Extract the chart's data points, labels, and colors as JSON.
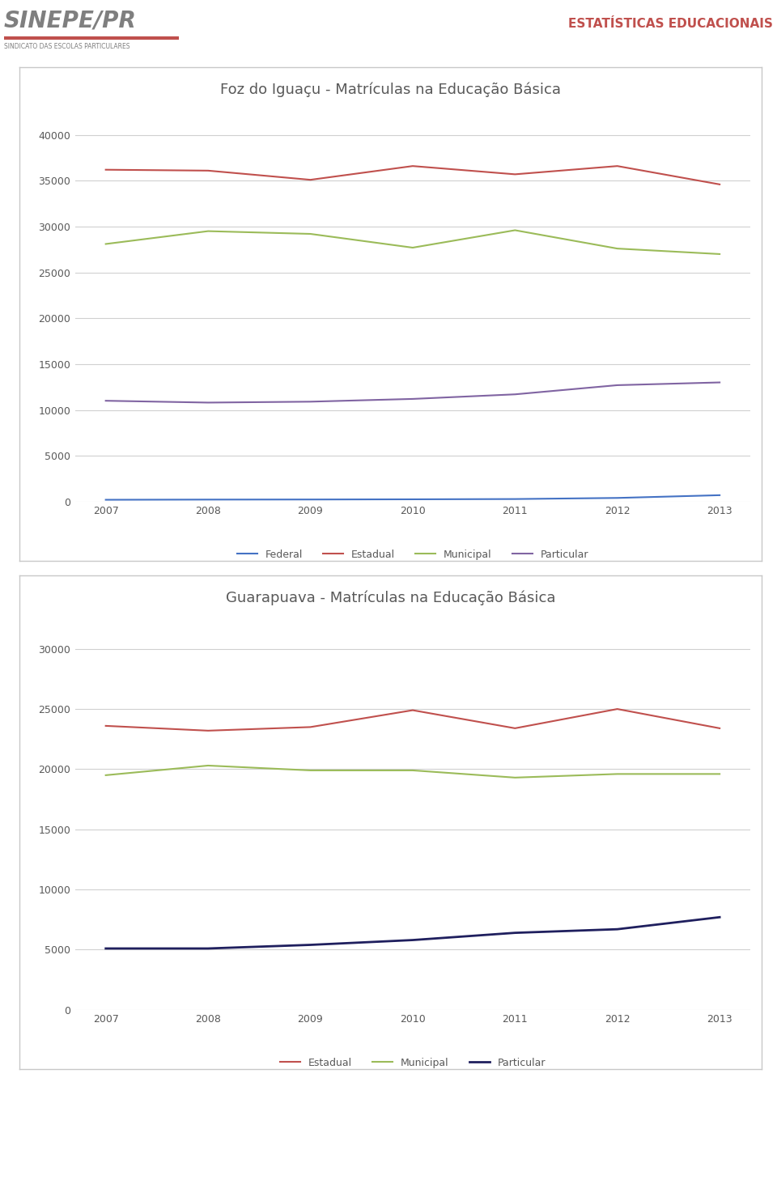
{
  "chart1": {
    "title": "Foz do Iguaçu - Matrículas na Educação Básica",
    "years": [
      2007,
      2008,
      2009,
      2010,
      2011,
      2012,
      2013
    ],
    "federal": [
      200,
      220,
      230,
      250,
      280,
      400,
      700
    ],
    "estadual": [
      36200,
      36100,
      35100,
      36600,
      35700,
      36600,
      34600
    ],
    "municipal": [
      28100,
      29500,
      29200,
      27700,
      29600,
      27600,
      27000
    ],
    "particular": [
      11000,
      10800,
      10900,
      11200,
      11700,
      12700,
      13000
    ],
    "ylim": [
      0,
      42000
    ],
    "yticks": [
      0,
      5000,
      10000,
      15000,
      20000,
      25000,
      30000,
      35000,
      40000
    ],
    "colors": {
      "federal": "#4472C4",
      "estadual": "#C0504D",
      "municipal": "#9BBB59",
      "particular": "#8064A2"
    },
    "legend_labels": [
      "Federal",
      "Estadual",
      "Municipal",
      "Particular"
    ]
  },
  "chart2": {
    "title": "Guarapuava - Matrículas na Educação Básica",
    "years": [
      2007,
      2008,
      2009,
      2010,
      2011,
      2012,
      2013
    ],
    "estadual": [
      23600,
      23200,
      23500,
      24900,
      23400,
      25000,
      23400
    ],
    "municipal": [
      19500,
      20300,
      19900,
      19900,
      19300,
      19600,
      19600
    ],
    "particular": [
      5100,
      5100,
      5400,
      5800,
      6400,
      6700,
      7700
    ],
    "ylim": [
      0,
      32000
    ],
    "yticks": [
      0,
      5000,
      10000,
      15000,
      20000,
      25000,
      30000
    ],
    "colors": {
      "estadual": "#C0504D",
      "municipal": "#9BBB59",
      "particular": "#1F1F5E"
    },
    "legend_labels": [
      "Estadual",
      "Municipal",
      "Particular"
    ]
  },
  "bg_color": "#ffffff",
  "grid_color": "#D0D0D0",
  "text_color": "#595959",
  "title_color": "#595959",
  "header_right_text": "ESTATÍSTICAS EDUCACIONAIS",
  "header_right_color": "#C0504D",
  "chart_border_color": "#C8C8C8",
  "legend_text_color": "#595959"
}
